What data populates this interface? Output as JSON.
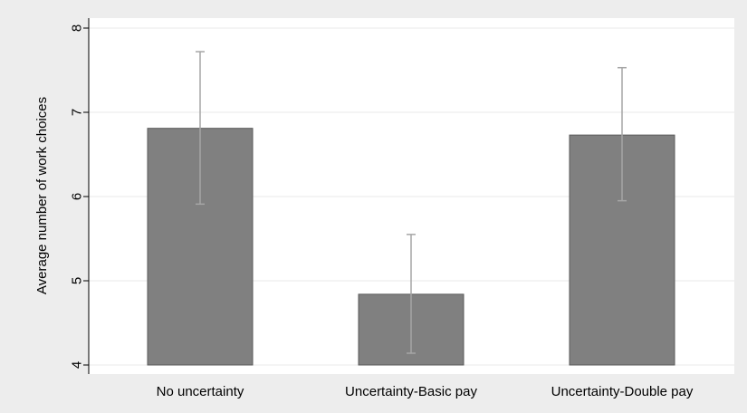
{
  "chart_data": {
    "type": "bar",
    "categories": [
      "No uncertainty",
      "Uncertainty-Basic pay",
      "Uncertainty-Double pay"
    ],
    "values": [
      6.81,
      4.84,
      6.73
    ],
    "error_bars": {
      "lower": [
        5.91,
        4.14,
        5.95
      ],
      "upper": [
        7.72,
        5.55,
        7.53
      ]
    },
    "title": "",
    "xlabel": "",
    "ylabel": "Average number of work choices",
    "ylim": [
      4,
      8
    ],
    "yticks": [
      "4",
      "5",
      "6",
      "7",
      "8"
    ],
    "grid": true,
    "colors": {
      "bar_fill": "#808080",
      "bar_stroke": "#5a5a5a",
      "error_bar": "#a6a6a6",
      "grid": "#e8e8e8",
      "plot_bg": "#ffffff",
      "outer_bg": "#ededed"
    }
  }
}
